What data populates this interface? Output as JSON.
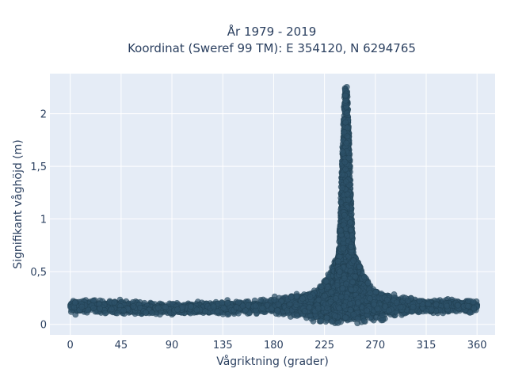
{
  "chart_data": {
    "type": "scatter",
    "title_line1": "År 1979 - 2019",
    "title_line2": "Koordinat (Sweref 99 TM): E 354120, N 6294765",
    "xlabel": "Vågriktning (grader)",
    "ylabel": "Signifikant våghöjd (m)",
    "xlim": [
      -18,
      376
    ],
    "ylim": [
      -0.1,
      2.38
    ],
    "x_ticks": [
      0,
      45,
      90,
      135,
      180,
      225,
      270,
      315,
      360
    ],
    "x_tick_labels": [
      "0",
      "45",
      "90",
      "135",
      "180",
      "225",
      "270",
      "315",
      "360"
    ],
    "y_ticks": [
      0,
      0.5,
      1,
      1.5,
      2
    ],
    "y_tick_labels": [
      "0",
      "0,5",
      "1",
      "1,5",
      "2"
    ],
    "grid": true,
    "marker_color": "#2d5168",
    "series": [
      {
        "description_points": [
          [
            0,
            0.17
          ],
          [
            10,
            0.16
          ],
          [
            20,
            0.16
          ],
          [
            30,
            0.15
          ],
          [
            45,
            0.15
          ],
          [
            60,
            0.14
          ],
          [
            75,
            0.14
          ],
          [
            90,
            0.13
          ],
          [
            105,
            0.13
          ],
          [
            120,
            0.14
          ],
          [
            135,
            0.15
          ],
          [
            150,
            0.16
          ],
          [
            165,
            0.17
          ],
          [
            180,
            0.18
          ],
          [
            195,
            0.2
          ],
          [
            210,
            0.24
          ],
          [
            220,
            0.32
          ],
          [
            230,
            0.5
          ],
          [
            235,
            0.75
          ],
          [
            238,
            1.1
          ],
          [
            240,
            1.6
          ],
          [
            242,
            2.1
          ],
          [
            244,
            2.27
          ],
          [
            246,
            2.2
          ],
          [
            248,
            1.8
          ],
          [
            250,
            1.3
          ],
          [
            253,
            0.8
          ],
          [
            258,
            0.45
          ],
          [
            265,
            0.3
          ],
          [
            275,
            0.2
          ],
          [
            290,
            0.17
          ],
          [
            305,
            0.17
          ],
          [
            320,
            0.16
          ],
          [
            335,
            0.16
          ],
          [
            350,
            0.17
          ],
          [
            360,
            0.17
          ]
        ]
      }
    ]
  }
}
